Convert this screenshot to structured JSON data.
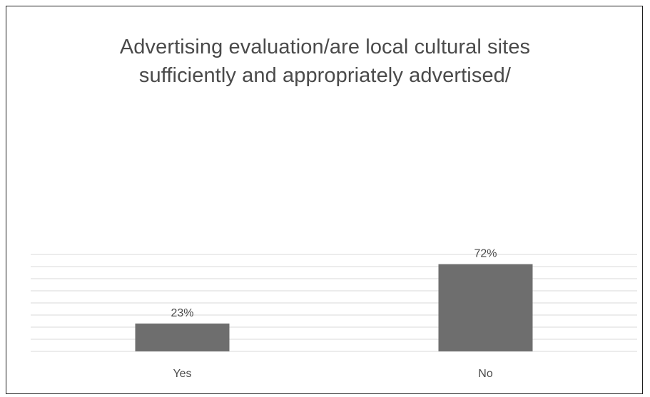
{
  "chart_data": {
    "type": "bar",
    "title_lines": [
      "Advertising evaluation/are local cultural sites",
      "sufficiently and appropriately advertised/"
    ],
    "categories": [
      "Yes",
      "No"
    ],
    "values": [
      23,
      72
    ],
    "data_labels": [
      "23%",
      "72%"
    ],
    "ylim": [
      0,
      80
    ],
    "grid": true,
    "legend": "none",
    "colors": {
      "bar": "#6e6e6e",
      "grid": "#d9d9d9",
      "text": "#4a4a4a"
    }
  }
}
